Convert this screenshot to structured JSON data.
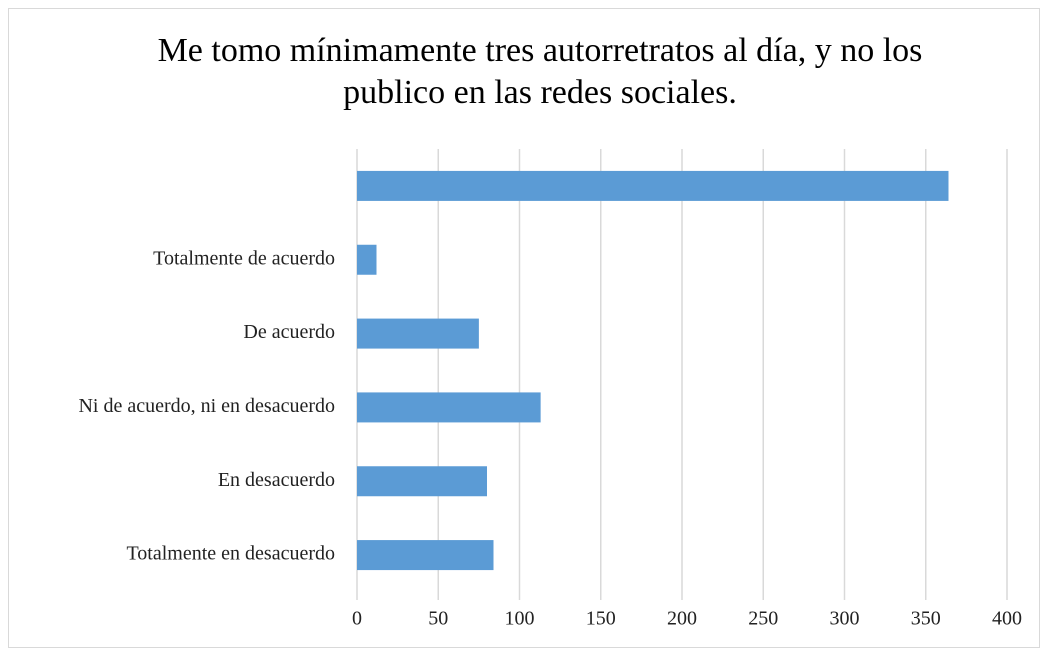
{
  "chart_data": {
    "type": "hbar",
    "title": "Me tomo mínimamente tres autorretratos al día,  y no los publico en las redes sociales.",
    "categories": [
      null,
      "Totalmente de acuerdo",
      "De acuerdo",
      "Ni de acuerdo, ni en desacuerdo",
      "En desacuerdo",
      "Totalmente en desacuerdo"
    ],
    "values": [
      364,
      12,
      75,
      113,
      80,
      84
    ],
    "color": "#5b9bd5",
    "xlim": [
      0,
      400
    ],
    "xticks": [
      0,
      50,
      100,
      150,
      200,
      250,
      300,
      350,
      400
    ],
    "grid": true
  }
}
